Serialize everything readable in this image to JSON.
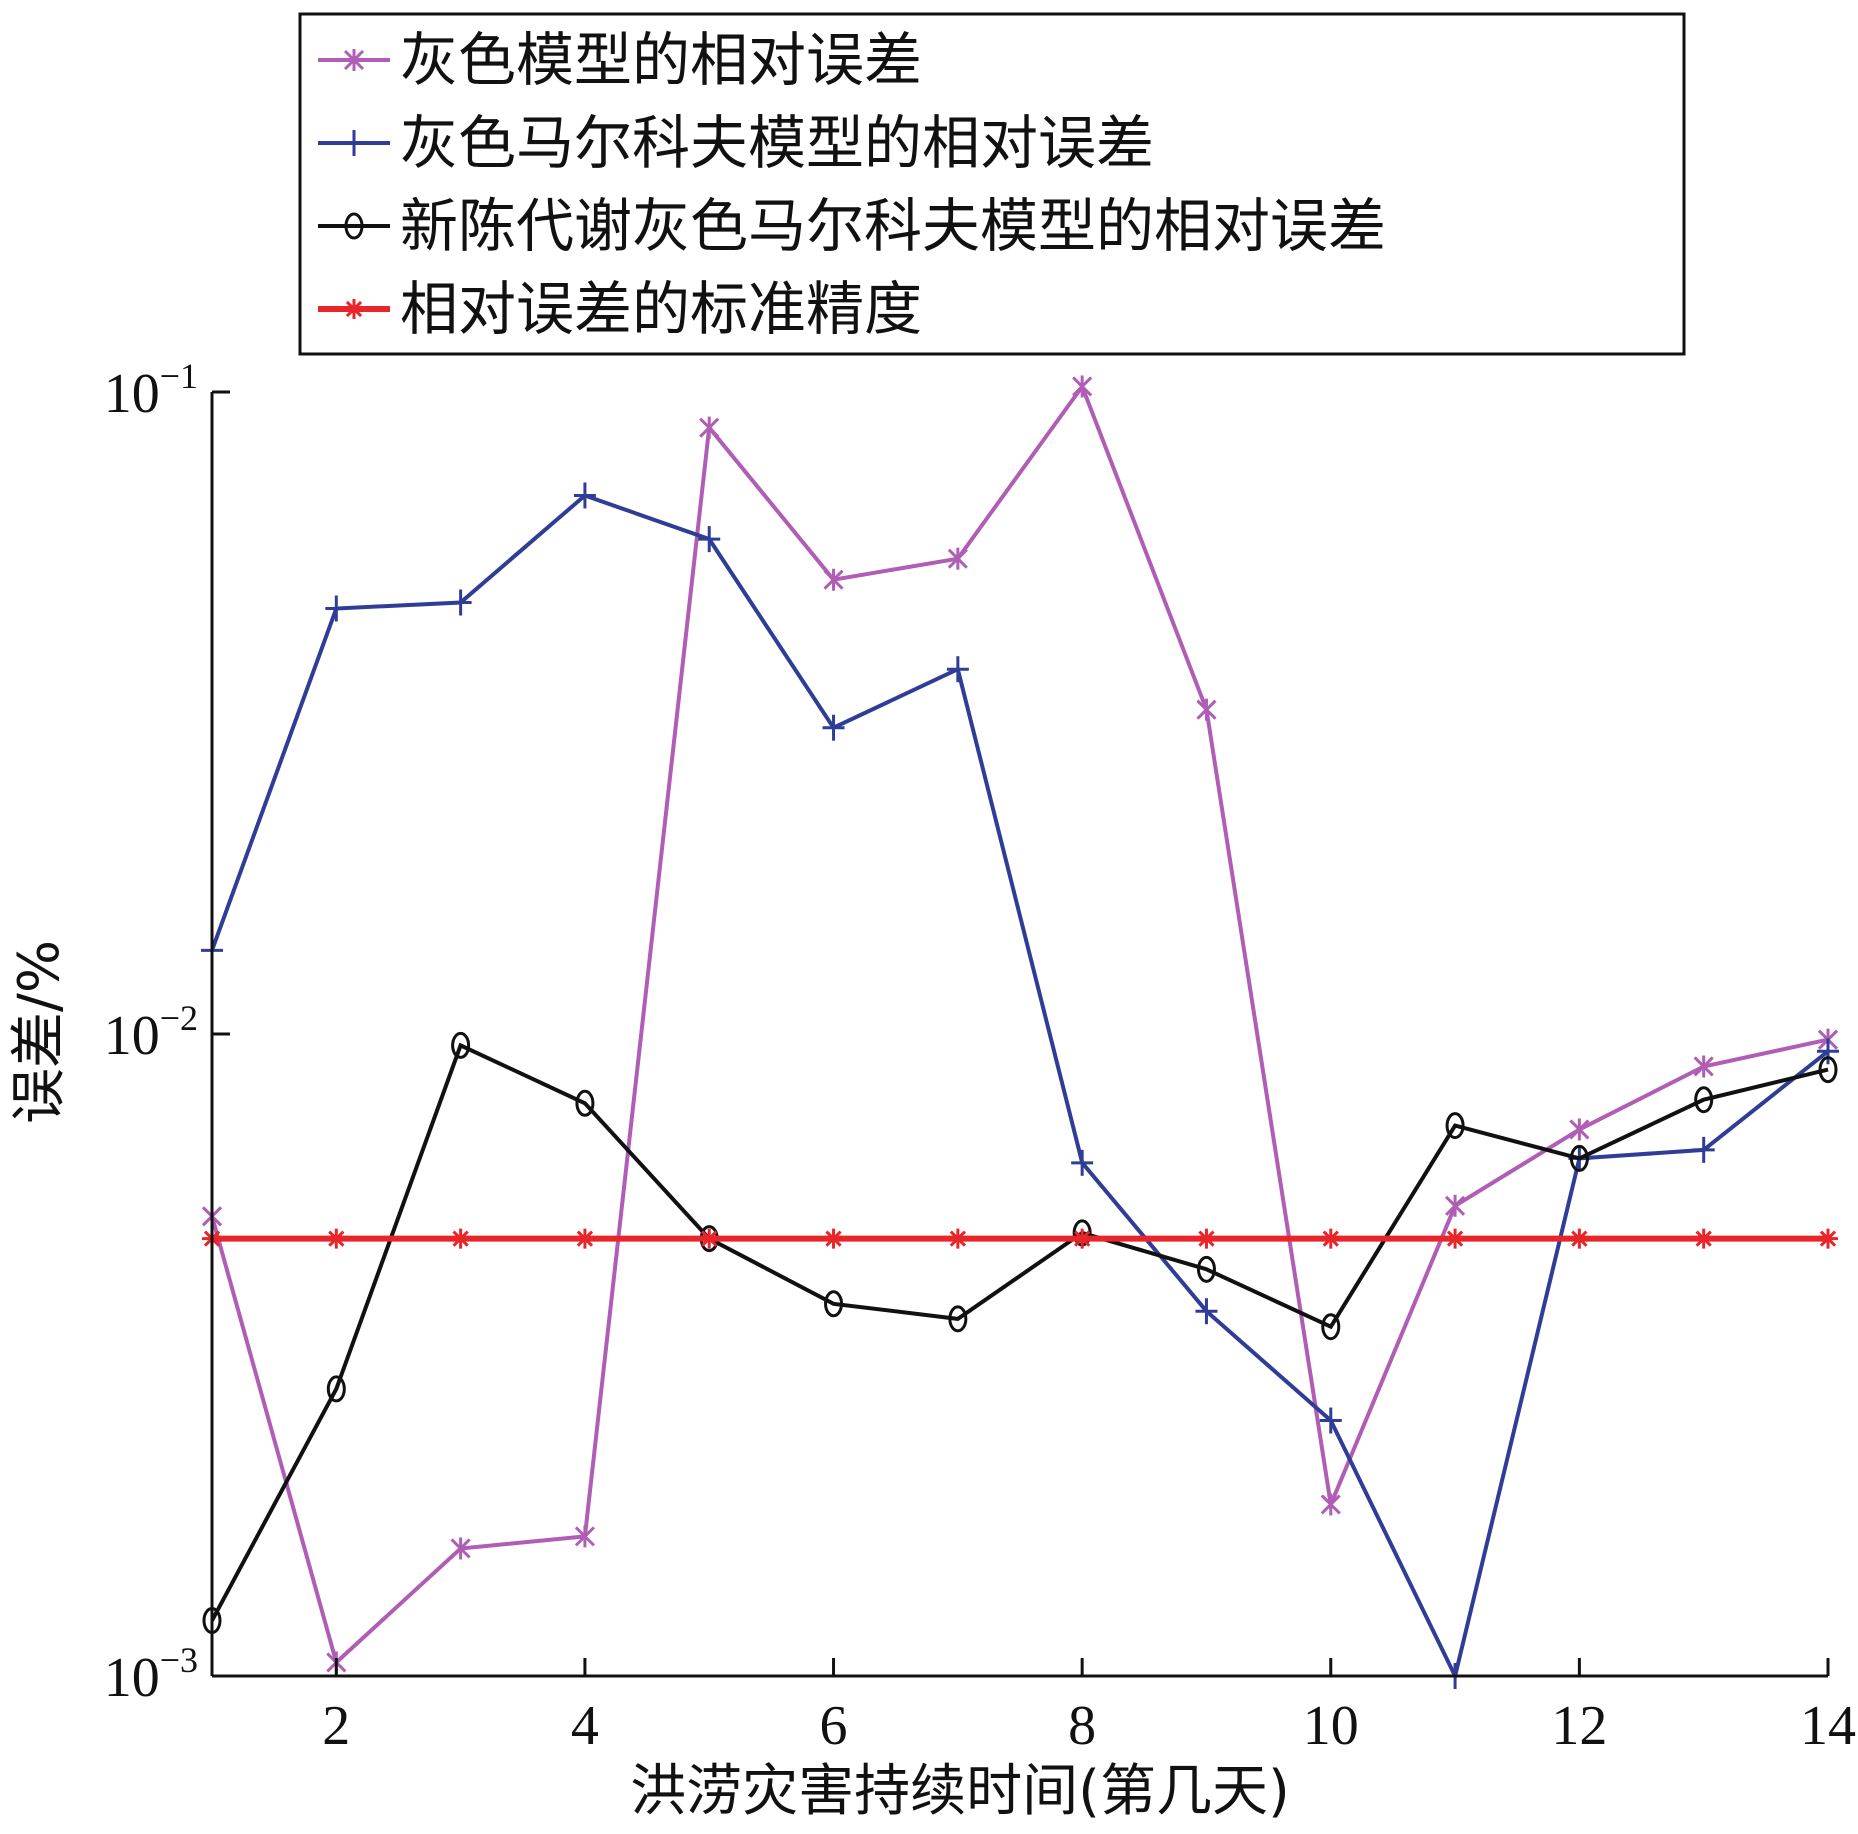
{
  "chart_data": {
    "type": "line",
    "x": [
      1,
      2,
      3,
      4,
      5,
      6,
      7,
      8,
      9,
      10,
      11,
      12,
      13,
      14
    ],
    "xlim": [
      1,
      14
    ],
    "ylim": [
      0.001,
      0.1
    ],
    "yscale": "log",
    "xticks": [
      2,
      4,
      6,
      8,
      10,
      12,
      14
    ],
    "xtick_labels": [
      "2",
      "4",
      "6",
      "8",
      "10",
      "12",
      "14"
    ],
    "ytick_bases": [
      "10",
      "10",
      "10"
    ],
    "ytick_exps": [
      "-3",
      "-2",
      "-1"
    ],
    "yticks": [
      0.001,
      0.01,
      0.1
    ],
    "xlabel": "洪涝灾害持续时间(第几天)",
    "ylabel": "误差/%",
    "grid": false,
    "legend_position": "top",
    "series": [
      {
        "name": "灰色模型的相对误差",
        "color": "#b05db5",
        "marker": "x",
        "values": [
          0.0052,
          0.00105,
          0.00158,
          0.00165,
          0.088,
          0.051,
          0.055,
          0.102,
          0.032,
          0.00185,
          0.0054,
          0.0071,
          0.0089,
          0.0098
        ]
      },
      {
        "name": "灰色马尔科夫模型的相对误差",
        "color": "#2f3d97",
        "marker": "plus",
        "values": [
          0.0135,
          0.046,
          0.047,
          0.069,
          0.059,
          0.03,
          0.037,
          0.0063,
          0.0037,
          0.0025,
          0.001,
          0.0064,
          0.0066,
          0.0094
        ]
      },
      {
        "name": "新陈代谢灰色马尔科夫模型的相对误差",
        "color": "#111111",
        "marker": "circle",
        "values": [
          0.00122,
          0.0028,
          0.0096,
          0.0078,
          0.0048,
          0.0038,
          0.0036,
          0.0049,
          0.0043,
          0.0035,
          0.0072,
          0.0064,
          0.0079,
          0.0088
        ]
      },
      {
        "name": "相对误差的标准精度",
        "color": "#e8262a",
        "marker": "star",
        "values": [
          0.0048,
          0.0048,
          0.0048,
          0.0048,
          0.0048,
          0.0048,
          0.0048,
          0.0048,
          0.0048,
          0.0048,
          0.0048,
          0.0048,
          0.0048,
          0.0048
        ]
      }
    ]
  }
}
